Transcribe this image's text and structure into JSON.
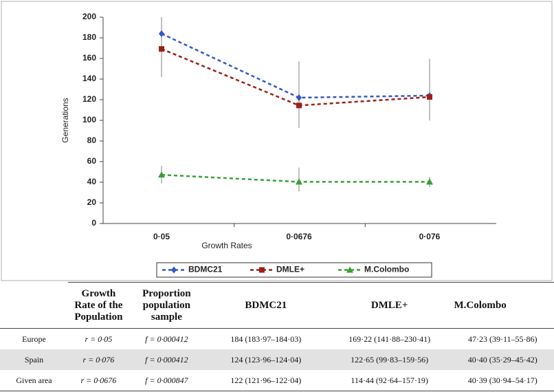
{
  "chart_data": {
    "type": "line",
    "x_label": "Growth Rates",
    "y_label": "Generations",
    "categories": [
      "0·05",
      "0·0676",
      "0·076"
    ],
    "series": [
      {
        "name": "BDMC21",
        "color": "#3556c8",
        "marker": "diamond",
        "values": [
          184,
          122,
          124
        ]
      },
      {
        "name": "DMLE+",
        "color": "#9c1f17",
        "marker": "square",
        "values": [
          169.22,
          114.44,
          122.65
        ],
        "low": [
          141.88,
          92.64,
          99.83
        ],
        "high": [
          230.41,
          157.19,
          159.56
        ]
      },
      {
        "name": "M.Colombo",
        "color": "#36a034",
        "marker": "triangle",
        "values": [
          47.23,
          40.39,
          40.4
        ],
        "low": [
          39.11,
          30.94,
          35.29
        ],
        "high": [
          55.86,
          54.17,
          45.42
        ]
      }
    ],
    "ylim": [
      0,
      200
    ],
    "yticks": [
      0,
      20,
      40,
      60,
      80,
      100,
      120,
      140,
      160,
      180,
      200
    ],
    "grid": false,
    "legend": "bottom"
  },
  "table": {
    "header": [
      "Growth Rate of the Population",
      "Proportion population sample",
      "BDMC21",
      "DMLE+",
      "M.Colombo"
    ],
    "rows": [
      [
        "Europe",
        "r = 0·05",
        "f = 0·000412",
        "184 (183·97–184·03)",
        "169·22 (141·88–230·41)",
        "47·23 (39·11–55·86)"
      ],
      [
        "Spain",
        "r = 0·076",
        "f = 0·000412",
        "124 (123·96–124·04)",
        "122·65 (99·83–159·56)",
        "40·40 (35·29–45·42)"
      ],
      [
        "Given area",
        "r = 0·0676",
        "f = 0·000847",
        "122 (121·96–122·04)",
        "114·44 (92·64–157·19)",
        "40·39 (30·94–54·17)"
      ]
    ]
  }
}
